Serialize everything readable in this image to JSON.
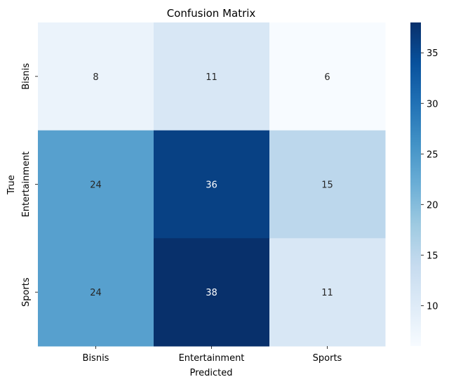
{
  "chart_data": {
    "type": "heatmap",
    "title": "Confusion Matrix",
    "xlabel": "Predicted",
    "ylabel": "True",
    "x_categories": [
      "Bisnis",
      "Entertainment",
      "Sports"
    ],
    "y_categories": [
      "Bisnis",
      "Entertainment",
      "Sports"
    ],
    "values": [
      [
        8,
        11,
        6
      ],
      [
        24,
        36,
        15
      ],
      [
        24,
        38,
        11
      ]
    ],
    "colormap": "Blues",
    "color_range": [
      6,
      38
    ],
    "colorbar_ticks": [
      10,
      15,
      20,
      25,
      30,
      35
    ],
    "annotations": true,
    "grid": false
  }
}
